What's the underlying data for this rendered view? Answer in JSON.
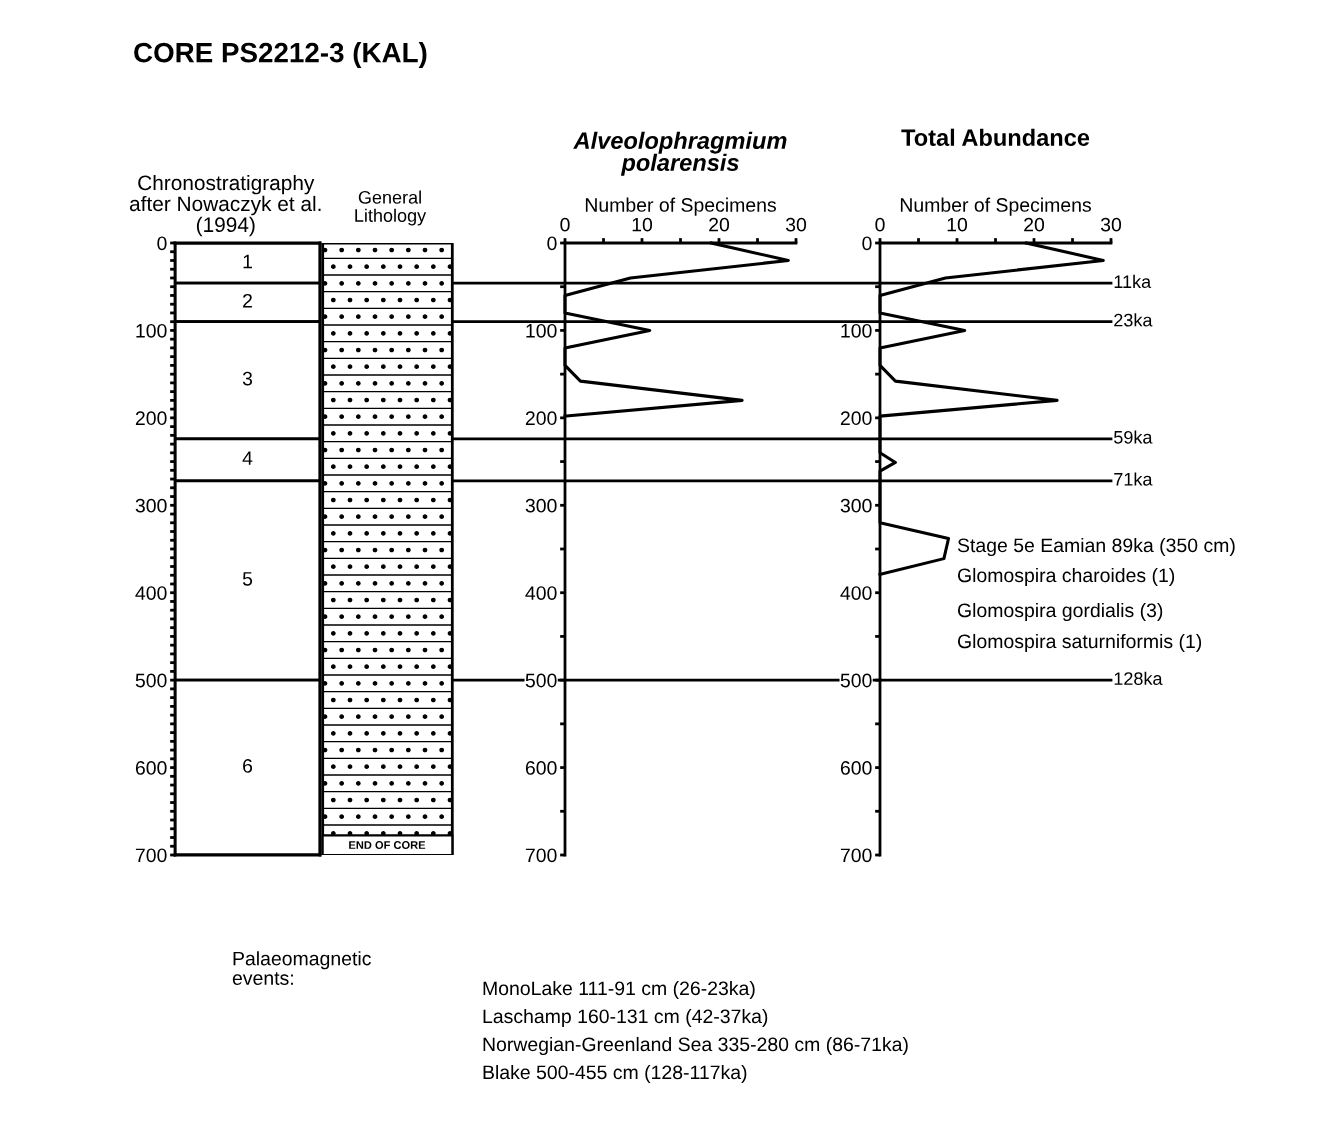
{
  "chart_data": [
    {
      "type": "bar",
      "stacked": true,
      "title": "Chronostratigraphy\nafter Nowaczyk et al.\n(1994)",
      "categories": [
        null
      ],
      "series": [
        {
          "name": "1",
          "color": "#ffffff",
          "values": [
            46
          ]
        },
        {
          "name": "2",
          "color": "#ffffff",
          "values": [
            44
          ]
        },
        {
          "name": "3",
          "color": "#ffffff",
          "values": [
            134
          ]
        },
        {
          "name": "4",
          "color": "#ffffff",
          "values": [
            48
          ]
        },
        {
          "name": "5",
          "color": "#ffffff",
          "values": [
            228
          ]
        },
        {
          "name": "6",
          "color": "#ffffff",
          "values": [
            200
          ]
        }
      ],
      "ylim": [
        700,
        0
      ],
      "yticks": [
        0,
        {
          "value": 10,
          "label": null
        },
        {
          "value": 20,
          "label": null
        },
        {
          "value": 30,
          "label": null
        },
        {
          "value": 40,
          "label": null
        },
        {
          "value": 50,
          "label": null
        },
        {
          "value": 60,
          "label": null
        },
        {
          "value": 70,
          "label": null
        },
        {
          "value": 80,
          "label": null
        },
        {
          "value": 90,
          "label": null
        },
        100,
        {
          "value": 110,
          "label": null
        },
        {
          "value": 120,
          "label": null
        },
        {
          "value": 130,
          "label": null
        },
        {
          "value": 140,
          "label": null
        },
        {
          "value": 150,
          "label": null
        },
        {
          "value": 160,
          "label": null
        },
        {
          "value": 170,
          "label": null
        },
        {
          "value": 180,
          "label": null
        },
        {
          "value": 190,
          "label": null
        },
        200,
        {
          "value": 210,
          "label": null
        },
        {
          "value": 220,
          "label": null
        },
        {
          "value": 230,
          "label": null
        },
        {
          "value": 240,
          "label": null
        },
        {
          "value": 250,
          "label": null
        },
        {
          "value": 260,
          "label": null
        },
        {
          "value": 270,
          "label": null
        },
        {
          "value": 280,
          "label": null
        },
        {
          "value": 290,
          "label": null
        },
        300,
        {
          "value": 310,
          "label": null
        },
        {
          "value": 320,
          "label": null
        },
        {
          "value": 330,
          "label": null
        },
        {
          "value": 340,
          "label": null
        },
        {
          "value": 350,
          "label": null
        },
        {
          "value": 360,
          "label": null
        },
        {
          "value": 370,
          "label": null
        },
        {
          "value": 380,
          "label": null
        },
        {
          "value": 390,
          "label": null
        },
        400,
        {
          "value": 410,
          "label": null
        },
        {
          "value": 420,
          "label": null
        },
        {
          "value": 430,
          "label": null
        },
        {
          "value": 440,
          "label": null
        },
        {
          "value": 450,
          "label": null
        },
        {
          "value": 460,
          "label": null
        },
        {
          "value": 470,
          "label": null
        },
        {
          "value": 480,
          "label": null
        },
        {
          "value": 490,
          "label": null
        },
        500,
        {
          "value": 510,
          "label": null
        },
        {
          "value": 520,
          "label": null
        },
        {
          "value": 530,
          "label": null
        },
        {
          "value": 540,
          "label": null
        },
        {
          "value": 550,
          "label": null
        },
        {
          "value": 560,
          "label": null
        },
        {
          "value": 570,
          "label": null
        },
        {
          "value": 580,
          "label": null
        },
        {
          "value": 590,
          "label": null
        },
        600,
        {
          "value": 610,
          "label": null
        },
        {
          "value": 620,
          "label": null
        },
        {
          "value": 630,
          "label": null
        },
        {
          "value": 640,
          "label": null
        },
        {
          "value": 650,
          "label": null
        },
        {
          "value": 660,
          "label": null
        },
        {
          "value": 670,
          "label": null
        },
        {
          "value": 680,
          "label": null
        },
        {
          "value": 690,
          "label": null
        },
        700
      ],
      "annotations": [
        "CORE PS2212-3 (KAL)",
        "General\nLithology",
        "END OF CORE",
        "Palaeomagnetic\nevents:",
        "MonoLake 111-91 cm (26-23ka)",
        "Laschamp 160-131 cm (42-37ka)",
        "Norwegian-Greenland Sea 335-280 cm (86-71ka)",
        "Blake 500-455 cm (128-117ka)"
      ]
    },
    {
      "type": "line",
      "orientation": "horizontal",
      "title": "Alveolophragmium\npolarensis",
      "xlabel": "Number of Specimens",
      "xlim": [
        0,
        30
      ],
      "xticks": [
        0,
        {
          "value": 5,
          "label": null
        },
        10,
        {
          "value": 15,
          "label": null
        },
        20,
        {
          "value": 25,
          "label": null
        },
        30
      ],
      "ylim": [
        700,
        0
      ],
      "yticks": [
        0,
        {
          "value": 50,
          "label": null
        },
        100,
        {
          "value": 150,
          "label": null
        },
        200,
        {
          "value": 250,
          "label": null
        },
        300,
        {
          "value": 350,
          "label": null
        },
        400,
        {
          "value": 450,
          "label": null
        },
        500,
        {
          "value": 550,
          "label": null
        },
        600,
        {
          "value": 650,
          "label": null
        },
        700
      ],
      "line_style": "solid",
      "series": [
        {
          "color": "#000000",
          "x": [
            0,
            20,
            40,
            60,
            80,
            100,
            120,
            140,
            158,
            180,
            198
          ],
          "values": [
            19,
            29,
            8.5,
            0,
            0,
            11,
            0,
            0,
            2,
            23,
            0
          ]
        }
      ],
      "ref_lines": [
        {
          "axis": "y",
          "value": 46
        },
        {
          "axis": "y",
          "value": 90
        },
        {
          "axis": "y",
          "value": 224
        },
        {
          "axis": "y",
          "value": 272
        },
        {
          "axis": "y",
          "value": 500
        }
      ]
    },
    {
      "type": "line",
      "orientation": "horizontal",
      "title": "Total Abundance",
      "xlabel": "Number of Specimens",
      "xlim": [
        0,
        30
      ],
      "xticks": [
        0,
        {
          "value": 5,
          "label": null
        },
        10,
        {
          "value": 15,
          "label": null
        },
        20,
        {
          "value": 25,
          "label": null
        },
        30
      ],
      "ylim": [
        700,
        0
      ],
      "yticks": [
        0,
        {
          "value": 50,
          "label": null
        },
        100,
        {
          "value": 150,
          "label": null
        },
        200,
        {
          "value": 250,
          "label": null
        },
        300,
        {
          "value": 350,
          "label": null
        },
        400,
        {
          "value": 450,
          "label": null
        },
        500,
        {
          "value": 550,
          "label": null
        },
        600,
        {
          "value": 650,
          "label": null
        },
        700
      ],
      "line_style": "solid",
      "series": [
        {
          "color": "#000000",
          "x": [
            0,
            20,
            40,
            60,
            80,
            100,
            120,
            140,
            158,
            180,
            198,
            240,
            251,
            261,
            320,
            338,
            361,
            379
          ],
          "values": [
            19,
            29,
            8.5,
            0,
            0,
            11,
            0,
            0,
            2,
            23,
            0,
            0,
            2,
            0,
            0,
            8.9,
            8.3,
            0
          ]
        }
      ],
      "ref_lines": [
        {
          "axis": "y",
          "value": 46,
          "label": "11ka"
        },
        {
          "axis": "y",
          "value": 90,
          "label": "23ka"
        },
        {
          "axis": "y",
          "value": 224,
          "label": "59ka"
        },
        {
          "axis": "y",
          "value": 272,
          "label": "71ka"
        },
        {
          "axis": "y",
          "value": 500,
          "label": "128ka"
        }
      ],
      "annotations": [
        "Stage 5e Eamian 89ka (350 cm)",
        "Glomospira charoides (1)",
        "Glomospira gordialis (3)",
        "Glomospira saturniformis (1)"
      ]
    }
  ]
}
